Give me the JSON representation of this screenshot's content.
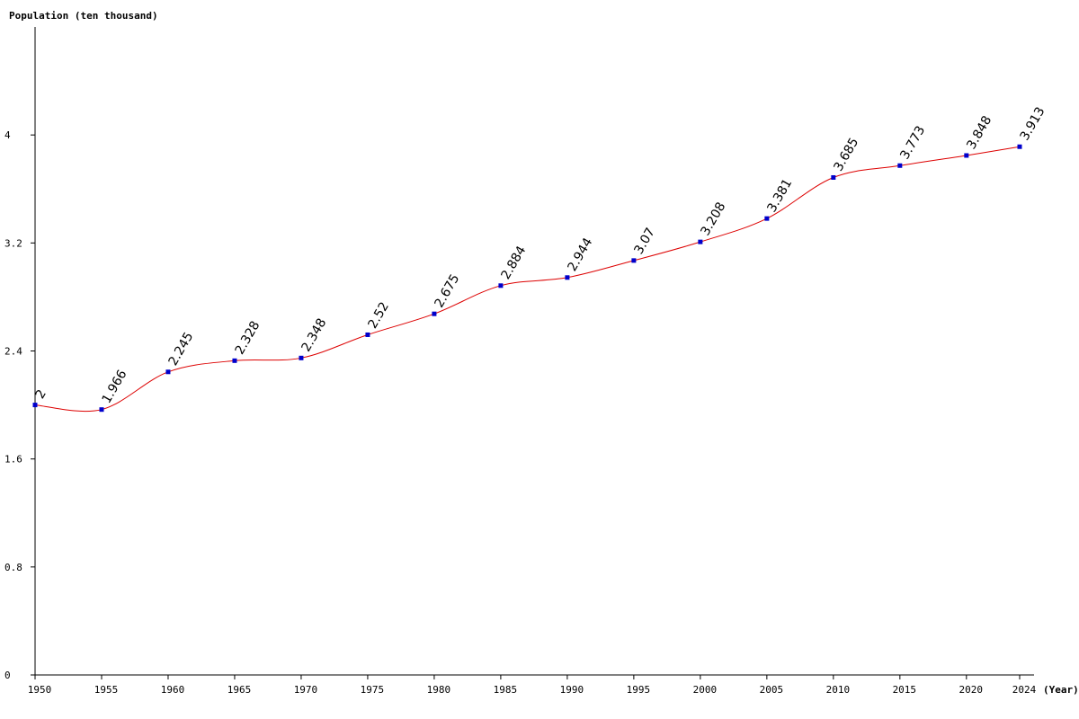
{
  "chart_data": {
    "type": "line",
    "ylabel": "Population (ten thousand)",
    "xlabel": "(Year)",
    "x": [
      1950,
      1955,
      1960,
      1965,
      1970,
      1975,
      1980,
      1985,
      1990,
      1995,
      2000,
      2005,
      2010,
      2015,
      2020,
      2024
    ],
    "series": [
      {
        "values": [
          2,
          1.966,
          2.245,
          2.328,
          2.348,
          2.52,
          2.675,
          2.884,
          2.944,
          3.07,
          3.208,
          3.381,
          3.685,
          3.773,
          3.848,
          3.913
        ],
        "labels": [
          "2",
          "1.966",
          "2.245",
          "2.328",
          "2.348",
          "2.52",
          "2.675",
          "2.884",
          "2.944",
          "3.07",
          "3.208",
          "3.381",
          "3.685",
          "3.773",
          "3.848",
          "3.913"
        ]
      }
    ],
    "yticks": [
      0,
      0.8,
      1.6,
      2.4,
      3.2,
      4
    ],
    "ytick_labels": [
      "0",
      "0.8",
      "1.6",
      "2.4",
      "3.2",
      "4"
    ],
    "xtick_labels": [
      "1950",
      "1955",
      "1960",
      "1965",
      "1970",
      "1975",
      "1980",
      "1985",
      "1990",
      "1995",
      "2000",
      "2005",
      "2010",
      "2015",
      "2020",
      "2024"
    ],
    "ylim": [
      0,
      4.8
    ],
    "xlim": [
      1950,
      2024
    ],
    "grid": false,
    "colors": {
      "line": "#dd0000",
      "marker": "#0000cc",
      "axis": "#000000"
    }
  }
}
